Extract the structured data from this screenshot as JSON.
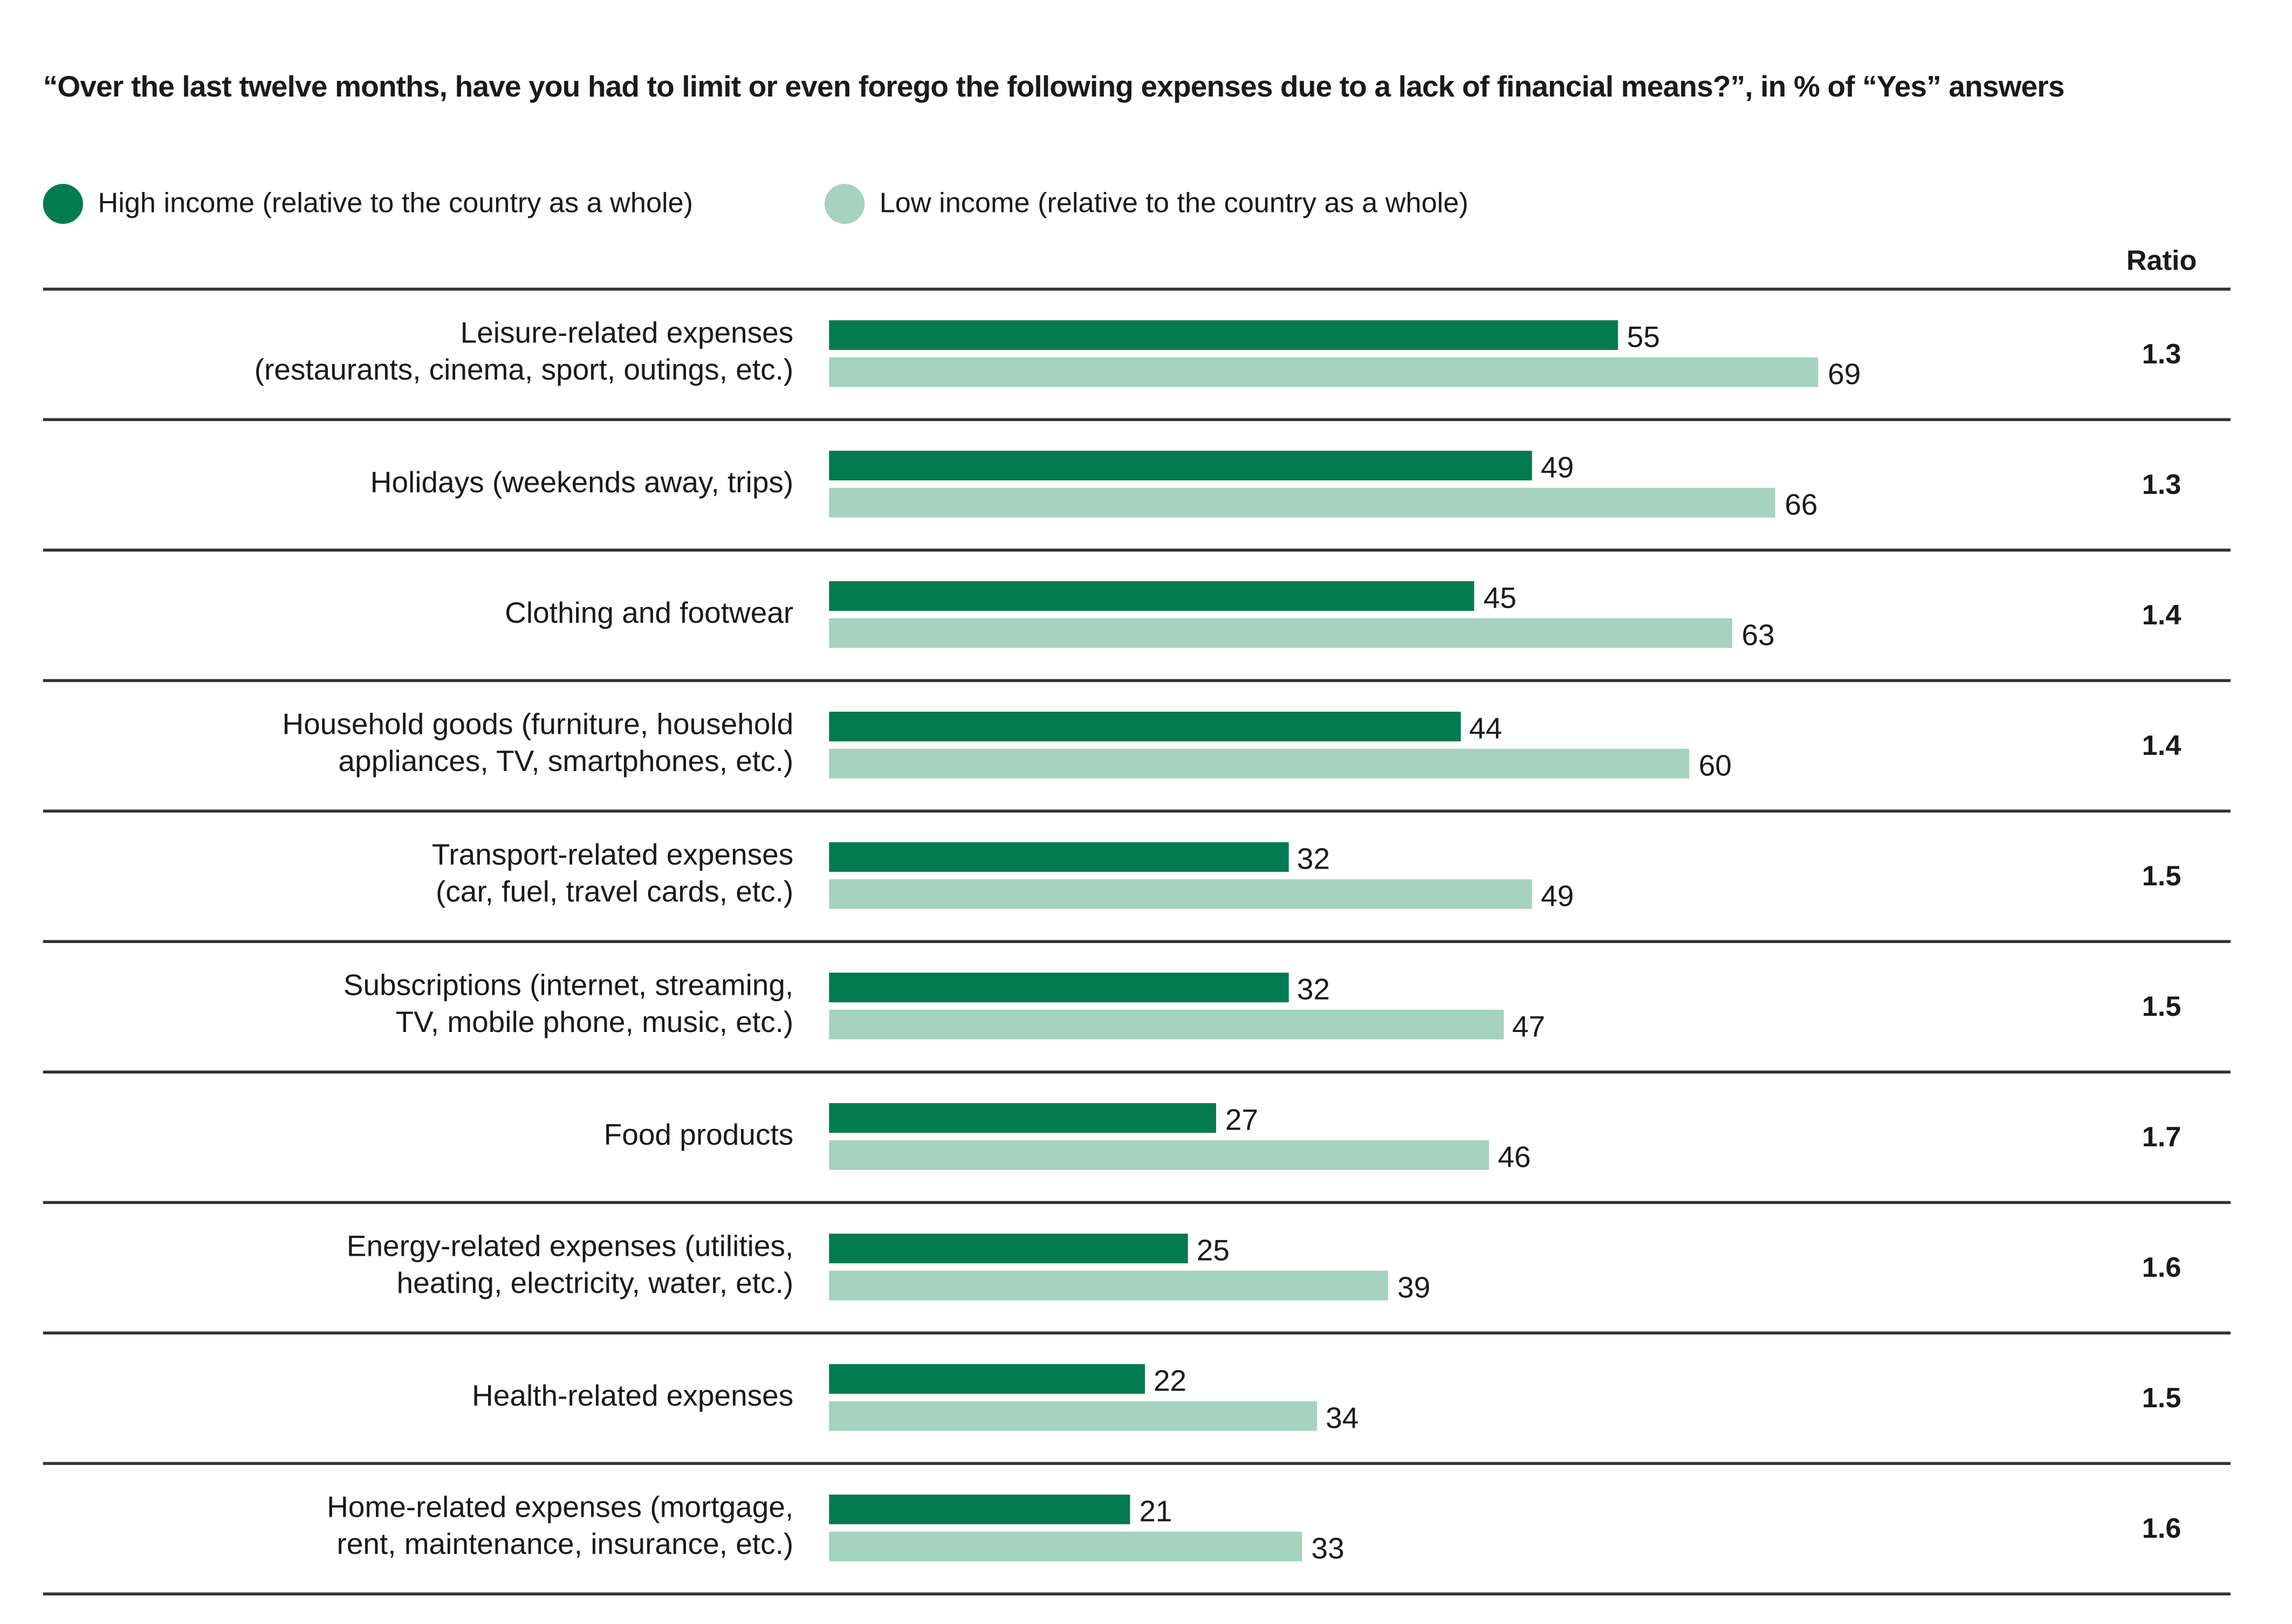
{
  "chart_data": {
    "type": "bar",
    "orientation": "horizontal",
    "title": "“Over the last twelve months, have you had to limit or even forego the following expenses due to a lack of financial means?”, in % of “Yes” answers",
    "legend_position": "top-left",
    "grid": false,
    "xlim": [
      0,
      100
    ],
    "ratio_header": "Ratio",
    "categories": [
      [
        "Leisure-related expenses",
        "(restaurants, cinema, sport, outings, etc.)"
      ],
      [
        "Holidays (weekends away, trips)"
      ],
      [
        "Clothing and footwear"
      ],
      [
        "Household goods (furniture, household",
        "appliances, TV, smartphones, etc.)"
      ],
      [
        "Transport-related expenses",
        "(car, fuel, travel cards, etc.)"
      ],
      [
        "Subscriptions (internet, streaming,",
        "TV, mobile phone, music, etc.)"
      ],
      [
        "Food products"
      ],
      [
        "Energy-related expenses (utilities,",
        "heating, electricity, water, etc.)"
      ],
      [
        "Health-related expenses"
      ],
      [
        "Home-related expenses (mortgage,",
        "rent, maintenance, insurance, etc.)"
      ]
    ],
    "series": [
      {
        "name": "High income (relative to the country as a whole)",
        "color": "#037B50",
        "values": [
          55,
          49,
          45,
          44,
          32,
          32,
          27,
          25,
          22,
          21
        ]
      },
      {
        "name": "Low income (relative to the country as a whole)",
        "color": "#A5D3BF",
        "values": [
          69,
          66,
          63,
          60,
          49,
          47,
          46,
          39,
          34,
          33
        ]
      }
    ],
    "ratios": [
      "1.3",
      "1.3",
      "1.4",
      "1.4",
      "1.5",
      "1.5",
      "1.7",
      "1.6",
      "1.5",
      "1.6"
    ]
  }
}
